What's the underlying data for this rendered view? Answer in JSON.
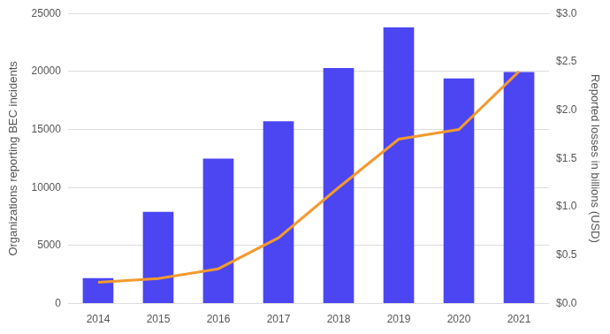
{
  "chart_data": {
    "type": "bar",
    "categories": [
      "2014",
      "2015",
      "2016",
      "2017",
      "2018",
      "2019",
      "2020",
      "2021"
    ],
    "ylabel": "Organizations reporting BEC incidents",
    "y2label": "Reported losses in billions (USD)",
    "series": [
      {
        "type": "bar",
        "color": "#4b46f2",
        "values": [
          2200,
          7900,
          12500,
          15700,
          20300,
          23800,
          19400,
          19950
        ]
      },
      {
        "type": "line",
        "color": "#f39a2e",
        "axis": "y2",
        "marker": "none",
        "values": [
          0.22,
          0.26,
          0.36,
          0.68,
          1.2,
          1.7,
          1.8,
          2.4
        ]
      }
    ],
    "ylim": [
      0,
      25000
    ],
    "yticks": [
      0,
      5000,
      10000,
      15000,
      20000,
      25000
    ],
    "y2lim": [
      0,
      3
    ],
    "y2ticks": [
      {
        "value": 0,
        "label": "$0.0"
      },
      {
        "value": 0.5,
        "label": "$0.5"
      },
      {
        "value": 1,
        "label": "$1.0"
      },
      {
        "value": 1.5,
        "label": "$1.5"
      },
      {
        "value": 2,
        "label": "$2.0"
      },
      {
        "value": 2.5,
        "label": "$2.5"
      },
      {
        "value": 3,
        "label": "$3.0"
      }
    ],
    "grid": true,
    "legend": false
  }
}
